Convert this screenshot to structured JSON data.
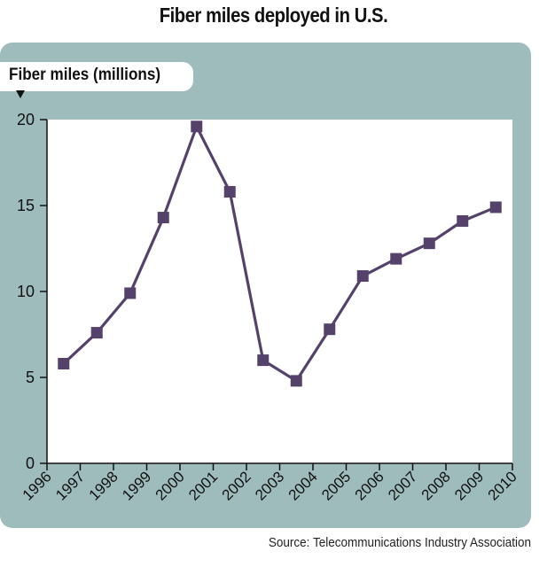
{
  "chart_data": {
    "type": "line",
    "title": "Fiber miles deployed in U.S.",
    "ylabel": "Fiber miles (millions)",
    "xlabel": "",
    "source": "Source: Telecommunications Industry Association",
    "ylim": [
      0,
      20
    ],
    "xlim": [
      1996,
      2010
    ],
    "x_ticks": [
      "1996",
      "1997",
      "1998",
      "1999",
      "2000",
      "2001",
      "2002",
      "2003",
      "2004",
      "2005",
      "2006",
      "2007",
      "2008",
      "2009",
      "2010"
    ],
    "y_ticks": [
      "0",
      "5",
      "10",
      "15",
      "20"
    ],
    "grid": false,
    "series": [
      {
        "x": [
          1996.5,
          1997.5,
          1998.5,
          1999.5,
          2000.5,
          2001.5,
          2002.5,
          2003.5,
          2004.5,
          2005.5,
          2006.5,
          2007.5,
          2008.5,
          2009.5
        ],
        "values": [
          5.8,
          7.6,
          9.9,
          14.3,
          19.6,
          15.8,
          6.0,
          4.8,
          7.8,
          10.9,
          11.9,
          12.8,
          14.1,
          14.9
        ]
      }
    ],
    "colors": {
      "line": "#54426b",
      "panel": "#9fbcbc",
      "plot_bg": "#ffffff"
    }
  }
}
